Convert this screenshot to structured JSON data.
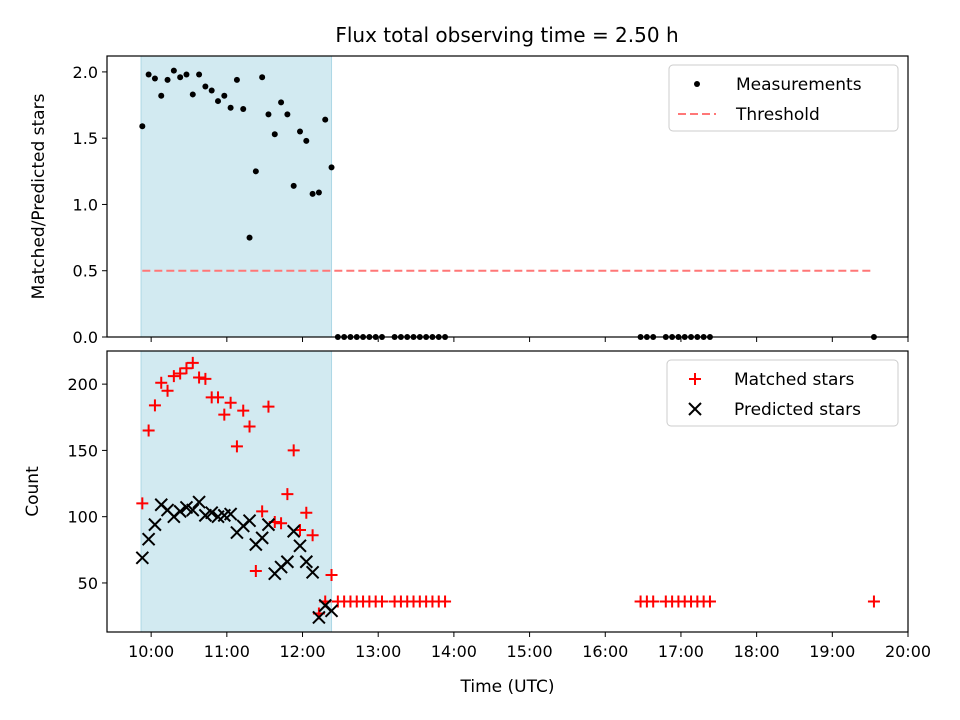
{
  "title": "Flux total observing time = 2.50 h",
  "chart_data": [
    {
      "type": "scatter",
      "ylabel": "Matched/Predicted stars",
      "xlabel": "",
      "xlim": [
        "09:25",
        "20:00"
      ],
      "ylim": [
        0,
        2.12
      ],
      "yticks": [
        0.0,
        0.5,
        1.0,
        1.5,
        2.0
      ],
      "ytick_labels": [
        "0.0",
        "0.5",
        "1.0",
        "1.5",
        "2.0"
      ],
      "legend_position": "top-right",
      "shaded_region": {
        "x_start": "09:52",
        "x_end": "12:23",
        "color": "#add8e6"
      },
      "series": [
        {
          "name": "Measurements",
          "marker": "dot",
          "color": "#000000",
          "points": [
            [
              "09:53",
              1.59
            ],
            [
              "09:58",
              1.98
            ],
            [
              "10:03",
              1.95
            ],
            [
              "10:08",
              1.82
            ],
            [
              "10:13",
              1.94
            ],
            [
              "10:18",
              2.01
            ],
            [
              "10:23",
              1.96
            ],
            [
              "10:28",
              1.98
            ],
            [
              "10:33",
              1.83
            ],
            [
              "10:38",
              1.98
            ],
            [
              "10:43",
              1.89
            ],
            [
              "10:48",
              1.86
            ],
            [
              "10:53",
              1.78
            ],
            [
              "10:58",
              1.82
            ],
            [
              "11:03",
              1.73
            ],
            [
              "11:08",
              1.94
            ],
            [
              "11:13",
              1.72
            ],
            [
              "11:18",
              0.75
            ],
            [
              "11:23",
              1.25
            ],
            [
              "11:28",
              1.96
            ],
            [
              "11:33",
              1.68
            ],
            [
              "11:38",
              1.53
            ],
            [
              "11:43",
              1.77
            ],
            [
              "11:48",
              1.68
            ],
            [
              "11:53",
              1.14
            ],
            [
              "11:58",
              1.55
            ],
            [
              "12:03",
              1.48
            ],
            [
              "12:08",
              1.08
            ],
            [
              "12:13",
              1.09
            ],
            [
              "12:18",
              1.64
            ],
            [
              "12:23",
              1.28
            ],
            [
              "12:28",
              0
            ],
            [
              "12:33",
              0
            ],
            [
              "12:38",
              0
            ],
            [
              "12:43",
              0
            ],
            [
              "12:48",
              0
            ],
            [
              "12:53",
              0
            ],
            [
              "12:58",
              0
            ],
            [
              "13:03",
              0
            ],
            [
              "13:13",
              0
            ],
            [
              "13:18",
              0
            ],
            [
              "13:23",
              0
            ],
            [
              "13:28",
              0
            ],
            [
              "13:33",
              0
            ],
            [
              "13:38",
              0
            ],
            [
              "13:43",
              0
            ],
            [
              "13:48",
              0
            ],
            [
              "13:53",
              0
            ],
            [
              "16:28",
              0
            ],
            [
              "16:33",
              0
            ],
            [
              "16:38",
              0
            ],
            [
              "16:48",
              0
            ],
            [
              "16:53",
              0
            ],
            [
              "16:58",
              0
            ],
            [
              "17:03",
              0
            ],
            [
              "17:08",
              0
            ],
            [
              "17:13",
              0
            ],
            [
              "17:18",
              0
            ],
            [
              "17:23",
              0
            ],
            [
              "19:33",
              0
            ]
          ]
        },
        {
          "name": "Threshold",
          "marker": "dashed-line",
          "color": "#ff7777",
          "points": [
            [
              "09:53",
              0.5
            ],
            [
              "19:33",
              0.5
            ]
          ]
        }
      ]
    },
    {
      "type": "scatter",
      "ylabel": "Count",
      "xlabel": "Time (UTC)",
      "xlim": [
        "09:25",
        "20:00"
      ],
      "ylim": [
        13,
        225
      ],
      "yticks": [
        50,
        100,
        150,
        200
      ],
      "ytick_labels": [
        "50",
        "100",
        "150",
        "200"
      ],
      "xticks": [
        "10:00",
        "11:00",
        "12:00",
        "13:00",
        "14:00",
        "15:00",
        "16:00",
        "17:00",
        "18:00",
        "19:00",
        "20:00"
      ],
      "legend_position": "top-right",
      "shaded_region": {
        "x_start": "09:52",
        "x_end": "12:23",
        "color": "#add8e6"
      },
      "series": [
        {
          "name": "Matched stars",
          "marker": "plus",
          "color": "#ff0000",
          "points": [
            [
              "09:53",
              110
            ],
            [
              "09:58",
              165
            ],
            [
              "10:03",
              184
            ],
            [
              "10:08",
              201
            ],
            [
              "10:13",
              195
            ],
            [
              "10:18",
              206
            ],
            [
              "10:23",
              208
            ],
            [
              "10:28",
              212
            ],
            [
              "10:33",
              216
            ],
            [
              "10:38",
              205
            ],
            [
              "10:43",
              204
            ],
            [
              "10:48",
              190
            ],
            [
              "10:53",
              190
            ],
            [
              "10:58",
              177
            ],
            [
              "11:03",
              186
            ],
            [
              "11:08",
              153
            ],
            [
              "11:13",
              180
            ],
            [
              "11:18",
              168
            ],
            [
              "11:23",
              59
            ],
            [
              "11:28",
              104
            ],
            [
              "11:33",
              183
            ],
            [
              "11:38",
              96
            ],
            [
              "11:43",
              95
            ],
            [
              "11:48",
              117
            ],
            [
              "11:53",
              150
            ],
            [
              "11:58",
              90
            ],
            [
              "12:03",
              103
            ],
            [
              "12:08",
              86
            ],
            [
              "12:13",
              27
            ],
            [
              "12:18",
              36
            ],
            [
              "12:23",
              56
            ],
            [
              "12:28",
              36
            ],
            [
              "12:33",
              36
            ],
            [
              "12:38",
              36
            ],
            [
              "12:43",
              36
            ],
            [
              "12:48",
              36
            ],
            [
              "12:53",
              36
            ],
            [
              "12:58",
              36
            ],
            [
              "13:03",
              36
            ],
            [
              "13:13",
              36
            ],
            [
              "13:18",
              36
            ],
            [
              "13:23",
              36
            ],
            [
              "13:28",
              36
            ],
            [
              "13:33",
              36
            ],
            [
              "13:38",
              36
            ],
            [
              "13:43",
              36
            ],
            [
              "13:48",
              36
            ],
            [
              "13:53",
              36
            ],
            [
              "16:28",
              36
            ],
            [
              "16:33",
              36
            ],
            [
              "16:38",
              36
            ],
            [
              "16:48",
              36
            ],
            [
              "16:53",
              36
            ],
            [
              "16:58",
              36
            ],
            [
              "17:03",
              36
            ],
            [
              "17:08",
              36
            ],
            [
              "17:13",
              36
            ],
            [
              "17:18",
              36
            ],
            [
              "17:23",
              36
            ],
            [
              "19:33",
              36
            ]
          ]
        },
        {
          "name": "Predicted stars",
          "marker": "x",
          "color": "#000000",
          "points": [
            [
              "09:53",
              69
            ],
            [
              "09:58",
              83
            ],
            [
              "10:03",
              94
            ],
            [
              "10:08",
              109
            ],
            [
              "10:13",
              105
            ],
            [
              "10:18",
              100
            ],
            [
              "10:23",
              104
            ],
            [
              "10:28",
              107
            ],
            [
              "10:33",
              105
            ],
            [
              "10:38",
              111
            ],
            [
              "10:43",
              101
            ],
            [
              "10:48",
              103
            ],
            [
              "10:53",
              100
            ],
            [
              "10:58",
              101
            ],
            [
              "11:03",
              102
            ],
            [
              "11:08",
              88
            ],
            [
              "11:13",
              93
            ],
            [
              "11:18",
              97
            ],
            [
              "11:23",
              79
            ],
            [
              "11:28",
              84
            ],
            [
              "11:33",
              94
            ],
            [
              "11:38",
              57
            ],
            [
              "11:43",
              62
            ],
            [
              "11:48",
              66
            ],
            [
              "11:53",
              89
            ],
            [
              "11:58",
              78
            ],
            [
              "12:03",
              66
            ],
            [
              "12:08",
              58
            ],
            [
              "12:13",
              24
            ],
            [
              "12:18",
              33
            ],
            [
              "12:23",
              29
            ]
          ]
        }
      ]
    }
  ]
}
